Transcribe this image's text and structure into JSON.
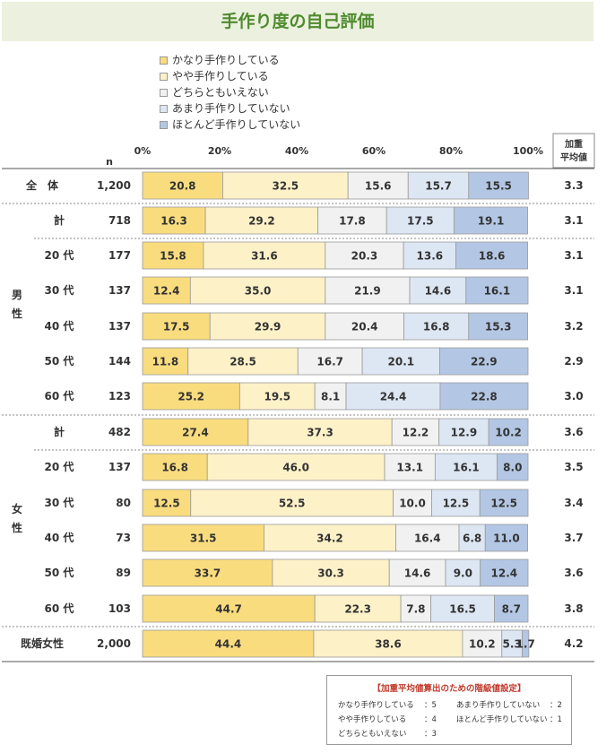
{
  "title": "手作り度の自己評価",
  "legend": [
    {
      "label": "かなり手作りしている",
      "color": "#f9dc7e"
    },
    {
      "label": "やや手作りしている",
      "color": "#fdf1c8"
    },
    {
      "label": "どちらともいえない",
      "color": "#f1f1f1"
    },
    {
      "label": "あまり手作りしていない",
      "color": "#dde6f3"
    },
    {
      "label": "ほとんど手作りしていない",
      "color": "#b3c7e4"
    }
  ],
  "weighted_header": [
    "加重",
    "平均値"
  ],
  "n_header": "n",
  "group_labels": [
    {
      "chars": [
        "男",
        "性"
      ]
    },
    {
      "chars": [
        "女",
        "性"
      ]
    }
  ],
  "chart_data": {
    "type": "bar",
    "orientation": "horizontal",
    "stacked": "percent",
    "xlim": [
      0,
      100
    ],
    "x_ticks": [
      "0%",
      "20%",
      "40%",
      "60%",
      "80%",
      "100%"
    ],
    "series": [
      {
        "name": "かなり手作りしている"
      },
      {
        "name": "やや手作りしている"
      },
      {
        "name": "どちらともいえない"
      },
      {
        "name": "あまり手作りしていない"
      },
      {
        "name": "ほとんど手作りしていない"
      }
    ],
    "rows": [
      {
        "label": "全　体",
        "n": "1,200",
        "values": [
          20.8,
          32.5,
          15.6,
          15.7,
          15.5
        ],
        "avg": "3.3"
      },
      {
        "label": "計",
        "n": "718",
        "values": [
          16.3,
          29.2,
          17.8,
          17.5,
          19.1
        ],
        "avg": "3.1"
      },
      {
        "label": "20 代",
        "n": "177",
        "values": [
          15.8,
          31.6,
          20.3,
          13.6,
          18.6
        ],
        "avg": "3.1"
      },
      {
        "label": "30 代",
        "n": "137",
        "values": [
          12.4,
          35.0,
          21.9,
          14.6,
          16.1
        ],
        "avg": "3.1"
      },
      {
        "label": "40 代",
        "n": "137",
        "values": [
          17.5,
          29.9,
          20.4,
          16.8,
          15.3
        ],
        "avg": "3.2"
      },
      {
        "label": "50 代",
        "n": "144",
        "values": [
          11.8,
          28.5,
          16.7,
          20.1,
          22.9
        ],
        "avg": "2.9"
      },
      {
        "label": "60 代",
        "n": "123",
        "values": [
          25.2,
          19.5,
          8.1,
          24.4,
          22.8
        ],
        "avg": "3.0"
      },
      {
        "label": "計",
        "n": "482",
        "values": [
          27.4,
          37.3,
          12.2,
          12.9,
          10.2
        ],
        "avg": "3.6"
      },
      {
        "label": "20 代",
        "n": "137",
        "values": [
          16.8,
          46.0,
          13.1,
          16.1,
          8.0
        ],
        "avg": "3.5"
      },
      {
        "label": "30 代",
        "n": "80",
        "values": [
          12.5,
          52.5,
          10.0,
          12.5,
          12.5
        ],
        "avg": "3.4"
      },
      {
        "label": "40 代",
        "n": "73",
        "values": [
          31.5,
          34.2,
          16.4,
          6.8,
          11.0
        ],
        "avg": "3.7"
      },
      {
        "label": "50 代",
        "n": "89",
        "values": [
          33.7,
          30.3,
          14.6,
          9.0,
          12.4
        ],
        "avg": "3.6"
      },
      {
        "label": "60 代",
        "n": "103",
        "values": [
          44.7,
          22.3,
          7.8,
          16.5,
          8.7
        ],
        "avg": "3.8"
      },
      {
        "label": "既婚女性",
        "n": "2,000",
        "values": [
          44.4,
          38.6,
          10.2,
          5.3,
          1.7
        ],
        "avg": "4.2"
      }
    ]
  },
  "note": {
    "title": "【加重平均値算出のための階級値設定】",
    "items": [
      {
        "label": "かなり手作りしている",
        "value": "：5"
      },
      {
        "label": "やや手作りしている",
        "value": "：4"
      },
      {
        "label": "どちらともいえない",
        "value": "：3"
      },
      {
        "label": "あまり手作りしていない",
        "value": "：2"
      },
      {
        "label": "ほとんど手作りしていない",
        "value": "：1"
      }
    ]
  }
}
